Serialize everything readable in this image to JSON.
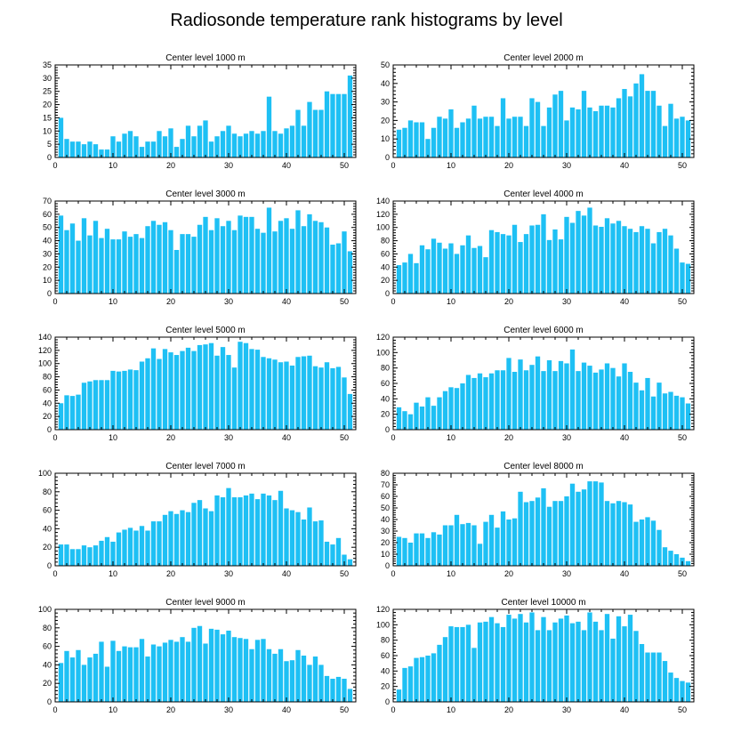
{
  "figure": {
    "title": "Radiosonde temperature rank histograms by level"
  },
  "colors": {
    "bar": "#1EC0F4",
    "axis": "#000000",
    "background": "#FFFFFF"
  },
  "chart_data": [
    {
      "type": "bar",
      "title": "Center level 1000 m",
      "xlim": [
        0,
        52
      ],
      "ylim": [
        0,
        35
      ],
      "xticks": [
        0,
        10,
        20,
        30,
        40,
        50
      ],
      "yticks": [
        0,
        5,
        10,
        15,
        20,
        25,
        30,
        35
      ],
      "categories": [
        1,
        2,
        3,
        4,
        5,
        6,
        7,
        8,
        9,
        10,
        11,
        12,
        13,
        14,
        15,
        16,
        17,
        18,
        19,
        20,
        21,
        22,
        23,
        24,
        25,
        26,
        27,
        28,
        29,
        30,
        31,
        32,
        33,
        34,
        35,
        36,
        37,
        38,
        39,
        40,
        41,
        42,
        43,
        44,
        45,
        46,
        47,
        48,
        49,
        50,
        51
      ],
      "values": [
        15,
        7,
        6,
        6,
        5,
        6,
        5,
        3,
        3,
        8,
        6,
        9,
        10,
        8,
        4,
        6,
        6,
        10,
        8,
        11,
        4,
        7,
        12,
        8,
        12,
        14,
        6,
        8,
        10,
        12,
        9,
        8,
        9,
        10,
        9,
        10,
        23,
        10,
        9,
        11,
        12,
        18,
        12,
        21,
        18,
        18,
        25,
        24,
        24,
        24,
        31
      ]
    },
    {
      "type": "bar",
      "title": "Center level 2000 m",
      "xlim": [
        0,
        52
      ],
      "ylim": [
        0,
        50
      ],
      "xticks": [
        0,
        10,
        20,
        30,
        40,
        50
      ],
      "yticks": [
        0,
        10,
        20,
        30,
        40,
        50
      ],
      "categories": [
        1,
        2,
        3,
        4,
        5,
        6,
        7,
        8,
        9,
        10,
        11,
        12,
        13,
        14,
        15,
        16,
        17,
        18,
        19,
        20,
        21,
        22,
        23,
        24,
        25,
        26,
        27,
        28,
        29,
        30,
        31,
        32,
        33,
        34,
        35,
        36,
        37,
        38,
        39,
        40,
        41,
        42,
        43,
        44,
        45,
        46,
        47,
        48,
        49,
        50,
        51
      ],
      "values": [
        15,
        16,
        20,
        19,
        19,
        10,
        16,
        22,
        21,
        26,
        16,
        19,
        21,
        28,
        21,
        22,
        22,
        17,
        32,
        21,
        22,
        22,
        17,
        32,
        30,
        17,
        27,
        34,
        36,
        20,
        27,
        26,
        36,
        27,
        25,
        28,
        28,
        27,
        32,
        37,
        33,
        40,
        45,
        36,
        36,
        28,
        17,
        29,
        21,
        22,
        20
      ]
    },
    {
      "type": "bar",
      "title": "Center level 3000 m",
      "xlim": [
        0,
        52
      ],
      "ylim": [
        0,
        70
      ],
      "xticks": [
        0,
        10,
        20,
        30,
        40,
        50
      ],
      "yticks": [
        0,
        10,
        20,
        30,
        40,
        50,
        60,
        70
      ],
      "categories": [
        1,
        2,
        3,
        4,
        5,
        6,
        7,
        8,
        9,
        10,
        11,
        12,
        13,
        14,
        15,
        16,
        17,
        18,
        19,
        20,
        21,
        22,
        23,
        24,
        25,
        26,
        27,
        28,
        29,
        30,
        31,
        32,
        33,
        34,
        35,
        36,
        37,
        38,
        39,
        40,
        41,
        42,
        43,
        44,
        45,
        46,
        47,
        48,
        49,
        50,
        51
      ],
      "values": [
        59,
        48,
        53,
        40,
        57,
        44,
        55,
        42,
        49,
        41,
        41,
        47,
        43,
        45,
        42,
        51,
        55,
        52,
        54,
        48,
        33,
        45,
        45,
        43,
        52,
        58,
        48,
        57,
        51,
        55,
        48,
        59,
        58,
        58,
        49,
        46,
        65,
        47,
        55,
        57,
        49,
        63,
        51,
        60,
        55,
        54,
        50,
        37,
        38,
        47,
        32
      ]
    },
    {
      "type": "bar",
      "title": "Center level 4000 m",
      "xlim": [
        0,
        52
      ],
      "ylim": [
        0,
        140
      ],
      "xticks": [
        0,
        10,
        20,
        30,
        40,
        50
      ],
      "yticks": [
        0,
        20,
        40,
        60,
        80,
        100,
        120,
        140
      ],
      "categories": [
        1,
        2,
        3,
        4,
        5,
        6,
        7,
        8,
        9,
        10,
        11,
        12,
        13,
        14,
        15,
        16,
        17,
        18,
        19,
        20,
        21,
        22,
        23,
        24,
        25,
        26,
        27,
        28,
        29,
        30,
        31,
        32,
        33,
        34,
        35,
        36,
        37,
        38,
        39,
        40,
        41,
        42,
        43,
        44,
        45,
        46,
        47,
        48,
        49,
        50,
        51
      ],
      "values": [
        43,
        47,
        60,
        46,
        73,
        67,
        83,
        77,
        68,
        76,
        60,
        73,
        88,
        69,
        72,
        55,
        96,
        93,
        90,
        88,
        104,
        78,
        90,
        103,
        104,
        120,
        81,
        97,
        82,
        116,
        107,
        125,
        118,
        130,
        103,
        101,
        114,
        106,
        110,
        102,
        98,
        93,
        102,
        98,
        76,
        93,
        98,
        88,
        68,
        47,
        45
      ]
    },
    {
      "type": "bar",
      "title": "Center level 5000 m",
      "xlim": [
        0,
        52
      ],
      "ylim": [
        0,
        140
      ],
      "xticks": [
        0,
        10,
        20,
        30,
        40,
        50
      ],
      "yticks": [
        0,
        20,
        40,
        60,
        80,
        100,
        120,
        140
      ],
      "categories": [
        1,
        2,
        3,
        4,
        5,
        6,
        7,
        8,
        9,
        10,
        11,
        12,
        13,
        14,
        15,
        16,
        17,
        18,
        19,
        20,
        21,
        22,
        23,
        24,
        25,
        26,
        27,
        28,
        29,
        30,
        31,
        32,
        33,
        34,
        35,
        36,
        37,
        38,
        39,
        40,
        41,
        42,
        43,
        44,
        45,
        46,
        47,
        48,
        49,
        50,
        51
      ],
      "values": [
        40,
        52,
        51,
        53,
        71,
        73,
        75,
        75,
        75,
        89,
        88,
        89,
        91,
        90,
        103,
        108,
        123,
        107,
        122,
        117,
        113,
        119,
        124,
        119,
        128,
        129,
        131,
        112,
        125,
        113,
        94,
        133,
        131,
        122,
        121,
        110,
        108,
        106,
        102,
        103,
        97,
        110,
        111,
        112,
        96,
        94,
        102,
        93,
        95,
        79,
        54
      ]
    },
    {
      "type": "bar",
      "title": "Center level 6000 m",
      "xlim": [
        0,
        52
      ],
      "ylim": [
        0,
        120
      ],
      "xticks": [
        0,
        10,
        20,
        30,
        40,
        50
      ],
      "yticks": [
        0,
        20,
        40,
        60,
        80,
        100,
        120
      ],
      "categories": [
        1,
        2,
        3,
        4,
        5,
        6,
        7,
        8,
        9,
        10,
        11,
        12,
        13,
        14,
        15,
        16,
        17,
        18,
        19,
        20,
        21,
        22,
        23,
        24,
        25,
        26,
        27,
        28,
        29,
        30,
        31,
        32,
        33,
        34,
        35,
        36,
        37,
        38,
        39,
        40,
        41,
        42,
        43,
        44,
        45,
        46,
        47,
        48,
        49,
        50,
        51
      ],
      "values": [
        29,
        24,
        20,
        35,
        30,
        42,
        31,
        42,
        50,
        55,
        54,
        60,
        71,
        67,
        73,
        68,
        73,
        77,
        77,
        93,
        75,
        91,
        77,
        84,
        95,
        76,
        90,
        76,
        89,
        86,
        104,
        76,
        87,
        83,
        74,
        78,
        86,
        80,
        69,
        86,
        75,
        61,
        51,
        67,
        43,
        61,
        47,
        49,
        44,
        42,
        34
      ]
    },
    {
      "type": "bar",
      "title": "Center level 7000 m",
      "xlim": [
        0,
        52
      ],
      "ylim": [
        0,
        100
      ],
      "xticks": [
        0,
        10,
        20,
        30,
        40,
        50
      ],
      "yticks": [
        0,
        20,
        40,
        60,
        80,
        100
      ],
      "categories": [
        1,
        2,
        3,
        4,
        5,
        6,
        7,
        8,
        9,
        10,
        11,
        12,
        13,
        14,
        15,
        16,
        17,
        18,
        19,
        20,
        21,
        22,
        23,
        24,
        25,
        26,
        27,
        28,
        29,
        30,
        31,
        32,
        33,
        34,
        35,
        36,
        37,
        38,
        39,
        40,
        41,
        42,
        43,
        44,
        45,
        46,
        47,
        48,
        49,
        50,
        51
      ],
      "values": [
        23,
        23,
        18,
        18,
        22,
        20,
        22,
        27,
        31,
        26,
        36,
        39,
        41,
        38,
        43,
        38,
        48,
        48,
        55,
        59,
        56,
        60,
        58,
        68,
        71,
        62,
        59,
        76,
        74,
        84,
        74,
        74,
        76,
        78,
        72,
        78,
        76,
        71,
        81,
        62,
        60,
        58,
        50,
        63,
        48,
        49,
        26,
        23,
        30,
        12,
        7
      ]
    },
    {
      "type": "bar",
      "title": "Center level 8000 m",
      "xlim": [
        0,
        52
      ],
      "ylim": [
        0,
        80
      ],
      "xticks": [
        0,
        10,
        20,
        30,
        40,
        50
      ],
      "yticks": [
        0,
        10,
        20,
        30,
        40,
        50,
        60,
        70,
        80
      ],
      "categories": [
        1,
        2,
        3,
        4,
        5,
        6,
        7,
        8,
        9,
        10,
        11,
        12,
        13,
        14,
        15,
        16,
        17,
        18,
        19,
        20,
        21,
        22,
        23,
        24,
        25,
        26,
        27,
        28,
        29,
        30,
        31,
        32,
        33,
        34,
        35,
        36,
        37,
        38,
        39,
        40,
        41,
        42,
        43,
        44,
        45,
        46,
        47,
        48,
        49,
        50,
        51
      ],
      "values": [
        25,
        24,
        20,
        28,
        28,
        24,
        29,
        27,
        35,
        35,
        44,
        36,
        37,
        35,
        19,
        38,
        44,
        33,
        47,
        40,
        41,
        64,
        55,
        56,
        59,
        67,
        51,
        56,
        56,
        60,
        71,
        64,
        66,
        73,
        73,
        72,
        56,
        54,
        56,
        55,
        53,
        38,
        40,
        42,
        39,
        31,
        16,
        13,
        10,
        7,
        4
      ]
    },
    {
      "type": "bar",
      "title": "Center level 9000 m",
      "xlim": [
        0,
        52
      ],
      "ylim": [
        0,
        100
      ],
      "xticks": [
        0,
        10,
        20,
        30,
        40,
        50
      ],
      "yticks": [
        0,
        20,
        40,
        60,
        80,
        100
      ],
      "categories": [
        1,
        2,
        3,
        4,
        5,
        6,
        7,
        8,
        9,
        10,
        11,
        12,
        13,
        14,
        15,
        16,
        17,
        18,
        19,
        20,
        21,
        22,
        23,
        24,
        25,
        26,
        27,
        28,
        29,
        30,
        31,
        32,
        33,
        34,
        35,
        36,
        37,
        38,
        39,
        40,
        41,
        42,
        43,
        44,
        45,
        46,
        47,
        48,
        49,
        50,
        51
      ],
      "values": [
        42,
        55,
        48,
        56,
        40,
        48,
        52,
        65,
        38,
        66,
        55,
        60,
        59,
        59,
        68,
        49,
        62,
        60,
        64,
        67,
        65,
        70,
        65,
        80,
        82,
        63,
        79,
        78,
        73,
        77,
        70,
        69,
        68,
        57,
        67,
        68,
        57,
        52,
        57,
        44,
        45,
        56,
        50,
        40,
        49,
        40,
        28,
        25,
        27,
        25,
        14
      ]
    },
    {
      "type": "bar",
      "title": "Center level 10000 m",
      "xlim": [
        0,
        52
      ],
      "ylim": [
        0,
        120
      ],
      "xticks": [
        0,
        10,
        20,
        30,
        40,
        50
      ],
      "yticks": [
        0,
        20,
        40,
        60,
        80,
        100,
        120
      ],
      "categories": [
        1,
        2,
        3,
        4,
        5,
        6,
        7,
        8,
        9,
        10,
        11,
        12,
        13,
        14,
        15,
        16,
        17,
        18,
        19,
        20,
        21,
        22,
        23,
        24,
        25,
        26,
        27,
        28,
        29,
        30,
        31,
        32,
        33,
        34,
        35,
        36,
        37,
        38,
        39,
        40,
        41,
        42,
        43,
        44,
        45,
        46,
        47,
        48,
        49,
        50,
        51
      ],
      "values": [
        16,
        44,
        46,
        57,
        58,
        60,
        63,
        74,
        84,
        98,
        97,
        97,
        100,
        70,
        103,
        104,
        110,
        102,
        97,
        113,
        108,
        114,
        103,
        116,
        93,
        110,
        93,
        103,
        108,
        112,
        102,
        104,
        93,
        116,
        104,
        93,
        114,
        82,
        111,
        98,
        113,
        92,
        75,
        64,
        64,
        64,
        53,
        38,
        31,
        27,
        25
      ]
    }
  ]
}
